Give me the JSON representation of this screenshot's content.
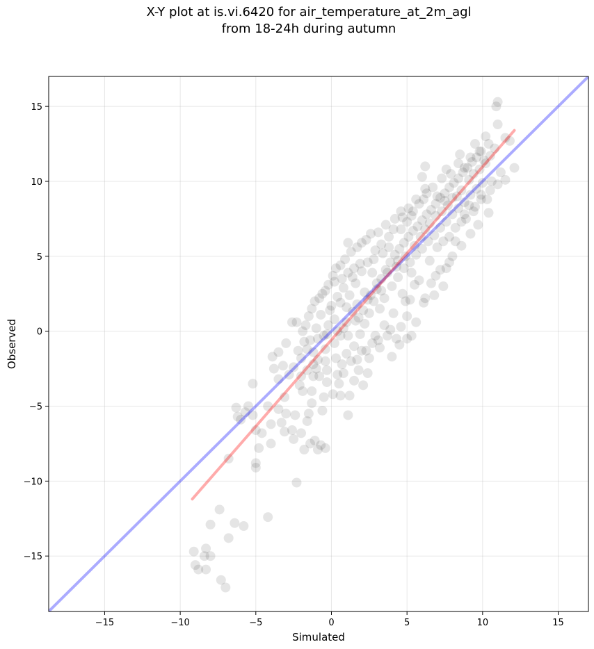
{
  "chart_data": {
    "type": "scatter",
    "title_line1": "X-Y plot at is.vi.6420 for air_temperature_at_2m_agl",
    "title_line2": "from 18-24h during autumn",
    "xlabel": "Simulated",
    "ylabel": "Observed",
    "xlim": [
      -18.7,
      17.0
    ],
    "ylim": [
      -18.7,
      17.0
    ],
    "xticks": [
      -15,
      -10,
      -5,
      0,
      5,
      10,
      15
    ],
    "yticks": [
      -15,
      -10,
      -5,
      0,
      5,
      10,
      15
    ],
    "x_tick_labels": [
      "−15",
      "−10",
      "−5",
      "0",
      "5",
      "10",
      "15"
    ],
    "y_tick_labels": [
      "−15",
      "−10",
      "−5",
      "0",
      "5",
      "10",
      "15"
    ],
    "grid": true,
    "point_color": "#000000",
    "point_alpha": 0.1,
    "reference_line": {
      "name": "1:1 line",
      "color": "#0000ff",
      "alpha": 0.33,
      "x": [
        -18.7,
        17.0
      ],
      "y": [
        -18.7,
        17.0
      ]
    },
    "fit_line": {
      "name": "regression",
      "color": "#ff0000",
      "alpha": 0.33,
      "x": [
        -9.2,
        12.1
      ],
      "y": [
        -11.2,
        13.4
      ]
    },
    "points": [
      [
        -9.1,
        -14.7
      ],
      [
        -9.0,
        -15.6
      ],
      [
        -8.8,
        -15.9
      ],
      [
        -8.4,
        -15.0
      ],
      [
        -8.3,
        -15.9
      ],
      [
        -8.3,
        -14.5
      ],
      [
        -8.0,
        -15.0
      ],
      [
        -8.0,
        -12.9
      ],
      [
        -7.4,
        -11.9
      ],
      [
        -7.3,
        -16.6
      ],
      [
        -7.0,
        -17.1
      ],
      [
        -6.8,
        -13.8
      ],
      [
        -6.8,
        -8.5
      ],
      [
        -6.4,
        -12.8
      ],
      [
        -5.8,
        -13.0
      ],
      [
        -4.2,
        -12.4
      ],
      [
        -2.3,
        -10.1
      ],
      [
        -6.3,
        -5.1
      ],
      [
        -6.2,
        -5.7
      ],
      [
        -6.0,
        -5.9
      ],
      [
        -5.7,
        -5.4
      ],
      [
        -5.5,
        -5.0
      ],
      [
        -5.2,
        -5.6
      ],
      [
        -5.0,
        -6.6
      ],
      [
        -5.0,
        -8.8
      ],
      [
        -5.0,
        -9.1
      ],
      [
        -4.8,
        -7.8
      ],
      [
        -5.2,
        -3.5
      ],
      [
        -4.6,
        -6.8
      ],
      [
        -4.2,
        -5.0
      ],
      [
        -4.0,
        -6.2
      ],
      [
        -4.0,
        -7.5
      ],
      [
        -3.5,
        -5.2
      ],
      [
        -3.3,
        -6.1
      ],
      [
        -3.1,
        -6.7
      ],
      [
        -3.1,
        -4.4
      ],
      [
        -3.0,
        -5.5
      ],
      [
        -2.6,
        -6.6
      ],
      [
        -2.5,
        -7.2
      ],
      [
        -2.4,
        -5.6
      ],
      [
        -2.0,
        -6.8
      ],
      [
        -1.8,
        -7.9
      ],
      [
        -1.6,
        -6.0
      ],
      [
        -1.4,
        -7.5
      ],
      [
        -1.1,
        -7.3
      ],
      [
        -0.9,
        -7.9
      ],
      [
        -0.7,
        -7.6
      ],
      [
        -0.4,
        -7.8
      ],
      [
        -1.5,
        -5.5
      ],
      [
        -1.3,
        -4.8
      ],
      [
        -3.9,
        -1.7
      ],
      [
        -3.5,
        -1.4
      ],
      [
        -3.2,
        -2.3
      ],
      [
        -3.0,
        -0.8
      ],
      [
        -2.8,
        -2.9
      ],
      [
        -2.6,
        0.6
      ],
      [
        -2.3,
        0.6
      ],
      [
        -3.8,
        -2.5
      ],
      [
        -3.5,
        -3.2
      ],
      [
        -2.0,
        -3.0
      ],
      [
        -2.0,
        -1.8
      ],
      [
        -1.9,
        -4.0
      ],
      [
        -1.6,
        -2.6
      ],
      [
        -1.3,
        -4.0
      ],
      [
        -1.2,
        -3.0
      ],
      [
        -1.2,
        -2.2
      ],
      [
        -0.9,
        -0.5
      ],
      [
        -0.8,
        -3.0
      ],
      [
        -0.6,
        -5.3
      ],
      [
        -0.5,
        -4.4
      ],
      [
        -0.4,
        -2.0
      ],
      [
        -0.3,
        -3.4
      ],
      [
        0.1,
        -4.2
      ],
      [
        0.5,
        -3.5
      ],
      [
        0.6,
        -4.3
      ],
      [
        0.8,
        -2.8
      ],
      [
        1.1,
        -5.6
      ],
      [
        1.2,
        -4.3
      ],
      [
        1.5,
        -3.3
      ],
      [
        1.8,
        -2.6
      ],
      [
        2.1,
        -3.6
      ],
      [
        2.5,
        -1.8
      ],
      [
        2.4,
        -2.8
      ],
      [
        2.7,
        -0.8
      ],
      [
        3.2,
        -1.1
      ],
      [
        3.7,
        -0.3
      ],
      [
        4.0,
        -1.7
      ],
      [
        4.3,
        -0.5
      ],
      [
        4.6,
        0.3
      ],
      [
        5.0,
        1.0
      ],
      [
        5.3,
        -0.3
      ],
      [
        5.6,
        0.6
      ],
      [
        5.2,
        2.1
      ],
      [
        5.5,
        3.1
      ],
      [
        6.1,
        1.9
      ],
      [
        6.2,
        2.2
      ],
      [
        6.6,
        3.2
      ],
      [
        6.9,
        3.7
      ],
      [
        7.2,
        4.1
      ],
      [
        7.6,
        4.2
      ],
      [
        7.8,
        4.6
      ],
      [
        7.8,
        6.3
      ],
      [
        8.2,
        6.0
      ],
      [
        8.6,
        7.3
      ],
      [
        8.8,
        7.8
      ],
      [
        9.1,
        8.4
      ],
      [
        9.5,
        8.3
      ],
      [
        9.9,
        8.8
      ],
      [
        10.3,
        8.8
      ],
      [
        10.5,
        9.4
      ],
      [
        11.0,
        9.8
      ],
      [
        11.5,
        10.1
      ],
      [
        12.1,
        10.9
      ],
      [
        11.8,
        12.7
      ],
      [
        11.5,
        12.9
      ],
      [
        11.0,
        13.8
      ],
      [
        10.9,
        15.0
      ],
      [
        11.0,
        15.3
      ],
      [
        10.4,
        12.5
      ],
      [
        10.1,
        11.4
      ],
      [
        10.2,
        13.0
      ],
      [
        9.8,
        12.0
      ],
      [
        9.5,
        12.5
      ],
      [
        9.2,
        11.6
      ],
      [
        8.8,
        10.9
      ],
      [
        8.4,
        11.2
      ],
      [
        7.6,
        10.8
      ],
      [
        6.2,
        11.0
      ],
      [
        6.0,
        10.3
      ],
      [
        6.2,
        9.5
      ],
      [
        5.6,
        8.8
      ],
      [
        5.1,
        8.2
      ],
      [
        4.6,
        8.0
      ],
      [
        4.2,
        7.5
      ],
      [
        3.6,
        7.1
      ],
      [
        3.1,
        6.6
      ],
      [
        2.6,
        6.5
      ],
      [
        2.3,
        6.1
      ],
      [
        2.0,
        5.9
      ],
      [
        1.7,
        5.6
      ],
      [
        1.3,
        5.3
      ],
      [
        1.1,
        5.9
      ],
      [
        0.9,
        4.8
      ],
      [
        0.6,
        4.4
      ],
      [
        0.3,
        4.2
      ],
      [
        0.1,
        3.7
      ],
      [
        0.2,
        3.3
      ],
      [
        -0.2,
        3.1
      ],
      [
        -0.4,
        2.7
      ],
      [
        -0.6,
        2.5
      ],
      [
        -0.8,
        2.2
      ],
      [
        -1.1,
        2.0
      ],
      [
        -1.3,
        1.5
      ],
      [
        -1.5,
        1.0
      ],
      [
        -1.7,
        0.4
      ],
      [
        -1.9,
        0.0
      ],
      [
        -1.8,
        -0.7
      ],
      [
        -1.6,
        -1.2
      ],
      [
        -1.2,
        -1.4
      ],
      [
        -0.9,
        -1.9
      ],
      [
        -0.4,
        -1.2
      ],
      [
        0.2,
        -0.8
      ],
      [
        0.6,
        -0.3
      ],
      [
        0.3,
        -1.8
      ],
      [
        0.7,
        -2.2
      ],
      [
        1.0,
        -1.5
      ],
      [
        1.5,
        -1.0
      ],
      [
        1.9,
        -0.2
      ],
      [
        2.2,
        0.5
      ],
      [
        1.8,
        0.9
      ],
      [
        1.4,
        1.3
      ],
      [
        1.0,
        1.6
      ],
      [
        0.6,
        1.9
      ],
      [
        0.2,
        0.8
      ],
      [
        -0.2,
        0.4
      ],
      [
        -0.5,
        -0.3
      ],
      [
        2.5,
        1.2
      ],
      [
        2.8,
        2.0
      ],
      [
        3.0,
        2.8
      ],
      [
        3.3,
        3.5
      ],
      [
        3.6,
        4.1
      ],
      [
        3.9,
        4.6
      ],
      [
        4.2,
        5.1
      ],
      [
        4.5,
        5.5
      ],
      [
        4.8,
        5.9
      ],
      [
        5.1,
        6.3
      ],
      [
        5.4,
        6.7
      ],
      [
        5.7,
        7.0
      ],
      [
        6.0,
        7.4
      ],
      [
        6.3,
        7.8
      ],
      [
        6.6,
        8.1
      ],
      [
        6.9,
        8.5
      ],
      [
        7.2,
        8.9
      ],
      [
        7.5,
        9.2
      ],
      [
        7.8,
        9.6
      ],
      [
        8.1,
        9.9
      ],
      [
        8.4,
        10.2
      ],
      [
        8.7,
        10.6
      ],
      [
        9.0,
        10.9
      ],
      [
        9.3,
        11.3
      ],
      [
        9.6,
        11.6
      ],
      [
        9.9,
        12.0
      ],
      [
        4.0,
        3.0
      ],
      [
        4.4,
        3.6
      ],
      [
        4.8,
        4.2
      ],
      [
        5.2,
        4.6
      ],
      [
        5.6,
        5.1
      ],
      [
        6.0,
        5.5
      ],
      [
        6.4,
        6.0
      ],
      [
        6.8,
        6.4
      ],
      [
        7.2,
        6.9
      ],
      [
        7.6,
        7.3
      ],
      [
        8.0,
        7.8
      ],
      [
        8.4,
        8.2
      ],
      [
        8.8,
        8.6
      ],
      [
        9.2,
        9.1
      ],
      [
        9.6,
        9.5
      ],
      [
        10.0,
        9.9
      ],
      [
        3.2,
        1.5
      ],
      [
        3.5,
        2.2
      ],
      [
        2.2,
        2.6
      ],
      [
        1.6,
        3.2
      ],
      [
        1.2,
        2.4
      ],
      [
        2.7,
        3.9
      ],
      [
        3.4,
        5.2
      ],
      [
        3.8,
        5.6
      ],
      [
        4.6,
        6.8
      ],
      [
        5.0,
        7.3
      ],
      [
        5.4,
        8.0
      ],
      [
        6.1,
        8.8
      ],
      [
        6.7,
        9.6
      ],
      [
        7.3,
        10.2
      ],
      [
        7.9,
        10.5
      ],
      [
        8.5,
        11.8
      ],
      [
        4.7,
        2.5
      ],
      [
        5.8,
        3.4
      ],
      [
        6.5,
        4.7
      ],
      [
        7.0,
        5.6
      ],
      [
        7.4,
        6.0
      ],
      [
        8.2,
        6.9
      ],
      [
        8.9,
        7.5
      ],
      [
        9.4,
        8.0
      ],
      [
        2.8,
        4.8
      ],
      [
        2.0,
        4.0
      ],
      [
        1.4,
        3.6
      ],
      [
        0.8,
        2.9
      ],
      [
        0.4,
        2.3
      ],
      [
        -0.1,
        1.4
      ],
      [
        -0.7,
        1.1
      ],
      [
        -1.0,
        0.2
      ],
      [
        -1.4,
        -0.6
      ],
      [
        -2.2,
        -1.3
      ],
      [
        -2.5,
        -2.4
      ],
      [
        -2.1,
        -3.6
      ],
      [
        -1.0,
        -2.5
      ],
      [
        -0.3,
        -2.6
      ],
      [
        0.4,
        -2.9
      ],
      [
        1.3,
        -2.0
      ],
      [
        2.0,
        -1.3
      ],
      [
        2.9,
        -0.3
      ],
      [
        3.5,
        0.4
      ],
      [
        4.1,
        1.2
      ],
      [
        4.9,
        2.0
      ],
      [
        5.3,
        3.9
      ],
      [
        4.3,
        4.3
      ],
      [
        3.0,
        3.2
      ],
      [
        2.4,
        2.1
      ],
      [
        1.7,
        1.8
      ],
      [
        1.0,
        0.6
      ],
      [
        0.4,
        0.0
      ],
      [
        -0.3,
        -0.2
      ],
      [
        0.0,
        1.7
      ],
      [
        5.9,
        6.3
      ],
      [
        6.2,
        6.8
      ],
      [
        6.5,
        7.2
      ],
      [
        6.9,
        7.7
      ],
      [
        7.3,
        8.0
      ],
      [
        7.7,
        8.4
      ],
      [
        8.3,
        9.0
      ],
      [
        8.6,
        9.4
      ],
      [
        9.1,
        10.1
      ],
      [
        9.4,
        10.5
      ],
      [
        9.8,
        10.8
      ],
      [
        10.2,
        11.2
      ],
      [
        10.5,
        11.7
      ],
      [
        10.8,
        12.2
      ],
      [
        5.5,
        5.7
      ],
      [
        4.9,
        5.0
      ],
      [
        4.4,
        4.7
      ],
      [
        3.7,
        3.9
      ],
      [
        3.3,
        2.7
      ],
      [
        2.6,
        2.4
      ],
      [
        2.1,
        1.4
      ],
      [
        1.6,
        0.7
      ],
      [
        1.1,
        -0.3
      ],
      [
        0.8,
        0.2
      ],
      [
        7.0,
        9.0
      ],
      [
        7.5,
        8.7
      ],
      [
        8.0,
        8.9
      ],
      [
        6.3,
        9.2
      ],
      [
        5.8,
        8.5
      ],
      [
        5.3,
        7.7
      ],
      [
        4.7,
        7.6
      ],
      [
        4.1,
        6.8
      ],
      [
        3.8,
        6.3
      ],
      [
        3.3,
        5.8
      ],
      [
        2.9,
        5.4
      ],
      [
        2.4,
        4.6
      ],
      [
        1.9,
        4.5
      ],
      [
        1.5,
        4.2
      ],
      [
        1.1,
        3.9
      ],
      [
        0.7,
        3.5
      ],
      [
        5.0,
        -0.5
      ],
      [
        4.5,
        -0.9
      ],
      [
        3.9,
        0.1
      ],
      [
        3.1,
        -0.6
      ],
      [
        2.3,
        -1.3
      ],
      [
        1.7,
        -1.9
      ],
      [
        6.8,
        2.4
      ],
      [
        7.4,
        3.0
      ],
      [
        8.0,
        5.0
      ],
      [
        8.6,
        5.7
      ],
      [
        9.2,
        6.5
      ],
      [
        9.7,
        7.1
      ],
      [
        10.4,
        7.9
      ],
      [
        9.9,
        9.1
      ],
      [
        10.6,
        10.0
      ],
      [
        11.2,
        10.6
      ]
    ]
  }
}
